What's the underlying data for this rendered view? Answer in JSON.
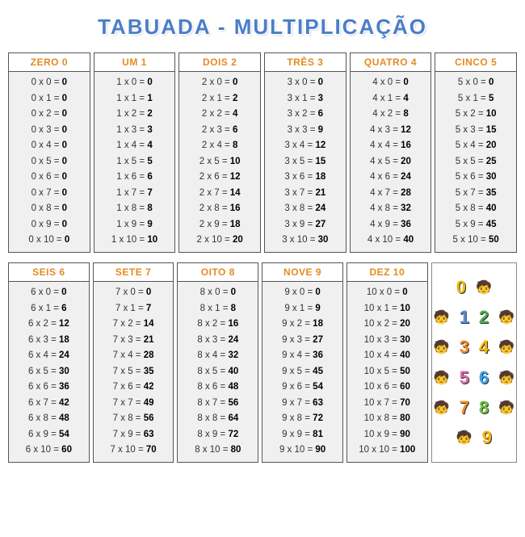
{
  "title": "TABUADA - MULTIPLICAÇÃO",
  "header_color": "#e58a1f",
  "title_color": "#4a7ec8",
  "body_bg": "#f0f0f0",
  "border_color": "#555555",
  "tables": [
    {
      "header": "ZERO 0",
      "n": 0
    },
    {
      "header": "UM 1",
      "n": 1
    },
    {
      "header": "DOIS 2",
      "n": 2
    },
    {
      "header": "TRÊS 3",
      "n": 3
    },
    {
      "header": "QUATRO 4",
      "n": 4
    },
    {
      "header": "CINCO 5",
      "n": 5
    },
    {
      "header": "SEIS 6",
      "n": 6
    },
    {
      "header": "SETE 7",
      "n": 7
    },
    {
      "header": "OITO 8",
      "n": 8
    },
    {
      "header": "NOVE 9",
      "n": 9
    },
    {
      "header": "DEZ 10",
      "n": 10
    }
  ],
  "multipliers": [
    0,
    1,
    2,
    3,
    4,
    5,
    6,
    7,
    8,
    9,
    10
  ],
  "decor": {
    "digits": [
      {
        "char": "0",
        "color": "#f5b700"
      },
      {
        "char": "1",
        "color": "#5b8fd6"
      },
      {
        "char": "2",
        "color": "#4caf50"
      },
      {
        "char": "3",
        "color": "#f28c1f"
      },
      {
        "char": "4",
        "color": "#f5b700"
      },
      {
        "char": "5",
        "color": "#d96ba8"
      },
      {
        "char": "6",
        "color": "#3ca4e8"
      },
      {
        "char": "7",
        "color": "#f28c1f"
      },
      {
        "char": "8",
        "color": "#6fbf44"
      },
      {
        "char": "9",
        "color": "#f5b700"
      }
    ],
    "rows": [
      [
        0
      ],
      [
        1,
        2
      ],
      [
        3,
        4
      ],
      [
        5,
        6
      ],
      [
        7,
        8
      ],
      [
        9
      ]
    ]
  }
}
